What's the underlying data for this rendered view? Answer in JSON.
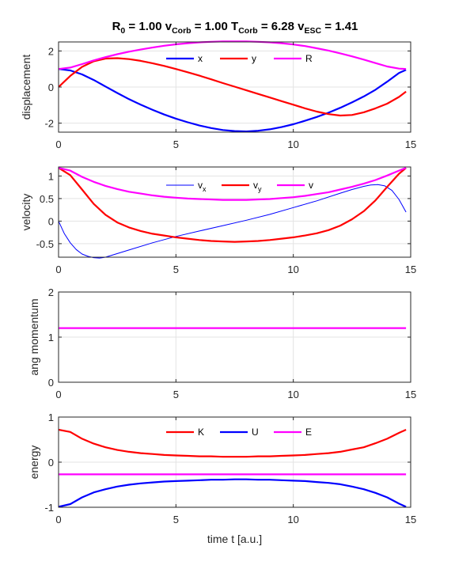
{
  "chart_data": [
    {
      "type": "line",
      "title": "R0 = 1.00  vCorb = 1.00  TCorb = 6.28  vESC = 1.41",
      "title_parts": [
        {
          "text": "R",
          "sub": false
        },
        {
          "text": "0",
          "sub": true
        },
        {
          "text": " = 1.00  v",
          "sub": false
        },
        {
          "text": "Corb",
          "sub": true
        },
        {
          "text": " = 1.00  T",
          "sub": false
        },
        {
          "text": "Corb",
          "sub": true
        },
        {
          "text": " = 6.28  v",
          "sub": false
        },
        {
          "text": "ESC",
          "sub": true
        },
        {
          "text": " = 1.41",
          "sub": false
        }
      ],
      "ylabel": "displacement",
      "xlabel": "",
      "xlim": [
        0,
        15
      ],
      "ylim": [
        -2.5,
        2.5
      ],
      "xticks": [
        0,
        5,
        10,
        15
      ],
      "yticks": [
        -2,
        0,
        2
      ],
      "xticklabels": [
        "0",
        "5",
        "10",
        "15"
      ],
      "yticklabels": [
        "-2",
        "0",
        "2"
      ],
      "grid": true,
      "legend_position": "top-center, horizontal",
      "series": [
        {
          "name": "x",
          "name_parts": [
            {
              "text": "x",
              "sub": false
            }
          ],
          "color": "#0000ff",
          "linewidth": 2.2,
          "x": [
            0,
            0.5,
            1,
            1.5,
            2,
            2.5,
            3,
            3.5,
            4,
            4.5,
            5,
            5.5,
            6,
            6.5,
            7,
            7.5,
            8,
            8.5,
            9,
            9.5,
            10,
            10.5,
            11,
            11.5,
            12,
            12.5,
            13,
            13.5,
            14,
            14.5,
            14.8
          ],
          "y": [
            1.0,
            0.92,
            0.7,
            0.39,
            0.03,
            -0.33,
            -0.67,
            -0.98,
            -1.26,
            -1.52,
            -1.75,
            -1.95,
            -2.13,
            -2.27,
            -2.38,
            -2.44,
            -2.46,
            -2.42,
            -2.34,
            -2.22,
            -2.06,
            -1.87,
            -1.66,
            -1.42,
            -1.15,
            -0.85,
            -0.52,
            -0.15,
            0.3,
            0.78,
            0.95
          ]
        },
        {
          "name": "y",
          "name_parts": [
            {
              "text": "y",
              "sub": false
            }
          ],
          "color": "#ff0000",
          "linewidth": 2.2,
          "x": [
            0,
            0.5,
            1,
            1.5,
            2,
            2.5,
            3,
            3.5,
            4,
            4.5,
            5,
            5.5,
            6,
            6.5,
            7,
            7.5,
            8,
            8.5,
            9,
            9.5,
            10,
            10.5,
            11,
            11.5,
            12,
            12.5,
            13,
            13.5,
            14,
            14.5,
            14.8
          ],
          "y": [
            0.0,
            0.62,
            1.12,
            1.43,
            1.58,
            1.6,
            1.55,
            1.45,
            1.32,
            1.17,
            1.0,
            0.82,
            0.63,
            0.43,
            0.22,
            0.02,
            -0.18,
            -0.38,
            -0.58,
            -0.78,
            -0.98,
            -1.18,
            -1.36,
            -1.5,
            -1.58,
            -1.55,
            -1.4,
            -1.18,
            -0.92,
            -0.55,
            -0.25
          ]
        },
        {
          "name": "R",
          "name_parts": [
            {
              "text": "R",
              "sub": false
            }
          ],
          "color": "#ff00ff",
          "linewidth": 2.2,
          "x": [
            0,
            0.5,
            1,
            1.5,
            2,
            2.5,
            3,
            3.5,
            4,
            4.5,
            5,
            5.5,
            6,
            6.5,
            7,
            7.5,
            8,
            8.5,
            9,
            9.5,
            10,
            10.5,
            11,
            11.5,
            12,
            12.5,
            13,
            13.5,
            14,
            14.5,
            14.8
          ],
          "y": [
            1.0,
            1.08,
            1.27,
            1.48,
            1.66,
            1.82,
            1.96,
            2.08,
            2.19,
            2.29,
            2.37,
            2.43,
            2.48,
            2.51,
            2.53,
            2.53,
            2.53,
            2.51,
            2.48,
            2.43,
            2.36,
            2.27,
            2.15,
            2.02,
            1.87,
            1.7,
            1.52,
            1.33,
            1.14,
            1.02,
            1.0
          ]
        }
      ]
    },
    {
      "type": "line",
      "ylabel": "velocity",
      "xlabel": "",
      "xlim": [
        0,
        15
      ],
      "ylim": [
        -0.8,
        1.2
      ],
      "xticks": [
        0,
        5,
        10,
        15
      ],
      "yticks": [
        -0.5,
        0,
        0.5,
        1
      ],
      "xticklabels": [
        "0",
        "5",
        "10",
        "15"
      ],
      "yticklabels": [
        "-0.5",
        "0",
        "0.5",
        "1"
      ],
      "grid": true,
      "legend_position": "top-center, horizontal",
      "series": [
        {
          "name": "vx",
          "name_parts": [
            {
              "text": "v",
              "sub": false
            },
            {
              "text": "x",
              "sub": true
            }
          ],
          "color": "#0000ff",
          "linewidth": 1.0,
          "x": [
            0,
            0.25,
            0.5,
            0.75,
            1,
            1.25,
            1.5,
            1.75,
            2,
            3,
            4,
            5,
            6,
            7,
            8,
            9,
            10,
            11,
            12,
            12.5,
            13,
            13.3,
            13.6,
            13.9,
            14.2,
            14.5,
            14.8
          ],
          "y": [
            0.0,
            -0.28,
            -0.48,
            -0.63,
            -0.73,
            -0.78,
            -0.81,
            -0.82,
            -0.8,
            -0.64,
            -0.48,
            -0.34,
            -0.22,
            -0.1,
            0.02,
            0.15,
            0.3,
            0.45,
            0.62,
            0.7,
            0.77,
            0.8,
            0.81,
            0.78,
            0.68,
            0.48,
            0.2
          ]
        },
        {
          "name": "vy",
          "name_parts": [
            {
              "text": "v",
              "sub": false
            },
            {
              "text": "y",
              "sub": true
            }
          ],
          "color": "#ff0000",
          "linewidth": 2.2,
          "x": [
            0,
            0.5,
            1,
            1.5,
            2,
            2.5,
            3,
            3.5,
            4,
            4.5,
            5,
            5.5,
            6,
            6.5,
            7,
            7.5,
            8,
            8.5,
            9,
            9.5,
            10,
            10.5,
            11,
            11.5,
            12,
            12.5,
            13,
            13.5,
            14,
            14.5,
            14.8
          ],
          "y": [
            1.18,
            1.02,
            0.7,
            0.38,
            0.14,
            -0.03,
            -0.14,
            -0.22,
            -0.28,
            -0.32,
            -0.36,
            -0.39,
            -0.42,
            -0.44,
            -0.45,
            -0.46,
            -0.45,
            -0.44,
            -0.42,
            -0.39,
            -0.36,
            -0.32,
            -0.27,
            -0.2,
            -0.1,
            0.04,
            0.22,
            0.46,
            0.76,
            1.05,
            1.18
          ]
        },
        {
          "name": "v",
          "name_parts": [
            {
              "text": "v",
              "sub": false
            }
          ],
          "color": "#ff00ff",
          "linewidth": 2.2,
          "x": [
            0,
            0.5,
            1,
            1.5,
            2,
            2.5,
            3,
            3.5,
            4,
            4.5,
            5,
            5.5,
            6,
            6.5,
            7,
            7.5,
            8,
            8.5,
            9,
            9.5,
            10,
            10.5,
            11,
            11.5,
            12,
            12.5,
            13,
            13.5,
            14,
            14.5,
            14.8
          ],
          "y": [
            1.18,
            1.12,
            0.98,
            0.87,
            0.78,
            0.71,
            0.65,
            0.61,
            0.57,
            0.54,
            0.52,
            0.5,
            0.49,
            0.48,
            0.47,
            0.47,
            0.47,
            0.48,
            0.49,
            0.51,
            0.53,
            0.56,
            0.6,
            0.64,
            0.7,
            0.76,
            0.83,
            0.91,
            1.01,
            1.12,
            1.18
          ]
        }
      ]
    },
    {
      "type": "line",
      "ylabel": "ang momentum",
      "xlabel": "",
      "xlim": [
        0,
        15
      ],
      "ylim": [
        0,
        2
      ],
      "xticks": [
        0,
        5,
        10,
        15
      ],
      "yticks": [
        0,
        1,
        2
      ],
      "xticklabels": [
        "0",
        "5",
        "10",
        "15"
      ],
      "yticklabels": [
        "0",
        "1",
        "2"
      ],
      "grid": true,
      "series": [
        {
          "color": "#ff00ff",
          "linewidth": 2.2,
          "x": [
            0,
            14.8
          ],
          "y": [
            1.2,
            1.2
          ]
        }
      ]
    },
    {
      "type": "line",
      "ylabel": "energy",
      "xlabel": "time t [a.u.]",
      "xlim": [
        0,
        15
      ],
      "ylim": [
        -1,
        1
      ],
      "xticks": [
        0,
        5,
        10,
        15
      ],
      "yticks": [
        -1,
        0,
        1
      ],
      "xticklabels": [
        "0",
        "5",
        "10",
        "15"
      ],
      "yticklabels": [
        "-1",
        "0",
        "1"
      ],
      "grid": true,
      "legend_position": "top-center, horizontal",
      "series": [
        {
          "name": "K",
          "name_parts": [
            {
              "text": "K",
              "sub": false
            }
          ],
          "color": "#ff0000",
          "linewidth": 2.2,
          "x": [
            0,
            0.5,
            1,
            1.5,
            2,
            2.5,
            3,
            3.5,
            4,
            4.5,
            5,
            5.5,
            6,
            6.5,
            7,
            7.5,
            8,
            8.5,
            9,
            9.5,
            10,
            10.5,
            11,
            11.5,
            12,
            12.5,
            13,
            13.5,
            14,
            14.5,
            14.8
          ],
          "y": [
            0.72,
            0.67,
            0.52,
            0.41,
            0.33,
            0.27,
            0.23,
            0.2,
            0.18,
            0.16,
            0.15,
            0.14,
            0.13,
            0.13,
            0.12,
            0.12,
            0.12,
            0.13,
            0.13,
            0.14,
            0.15,
            0.16,
            0.18,
            0.2,
            0.23,
            0.28,
            0.33,
            0.42,
            0.52,
            0.65,
            0.72
          ]
        },
        {
          "name": "U",
          "name_parts": [
            {
              "text": "U",
              "sub": false
            }
          ],
          "color": "#0000ff",
          "linewidth": 2.2,
          "x": [
            0,
            0.5,
            1,
            1.5,
            2,
            2.5,
            3,
            3.5,
            4,
            4.5,
            5,
            5.5,
            6,
            6.5,
            7,
            7.5,
            8,
            8.5,
            9,
            9.5,
            10,
            10.5,
            11,
            11.5,
            12,
            12.5,
            13,
            13.5,
            14,
            14.5,
            14.8
          ],
          "y": [
            -0.99,
            -0.93,
            -0.78,
            -0.67,
            -0.6,
            -0.54,
            -0.5,
            -0.47,
            -0.45,
            -0.43,
            -0.42,
            -0.41,
            -0.4,
            -0.39,
            -0.39,
            -0.38,
            -0.38,
            -0.39,
            -0.39,
            -0.4,
            -0.41,
            -0.42,
            -0.44,
            -0.46,
            -0.49,
            -0.54,
            -0.6,
            -0.68,
            -0.78,
            -0.92,
            -0.99
          ]
        },
        {
          "name": "E",
          "name_parts": [
            {
              "text": "E",
              "sub": false
            }
          ],
          "color": "#ff00ff",
          "linewidth": 2.2,
          "x": [
            0,
            14.8
          ],
          "y": [
            -0.27,
            -0.27
          ]
        }
      ]
    }
  ]
}
